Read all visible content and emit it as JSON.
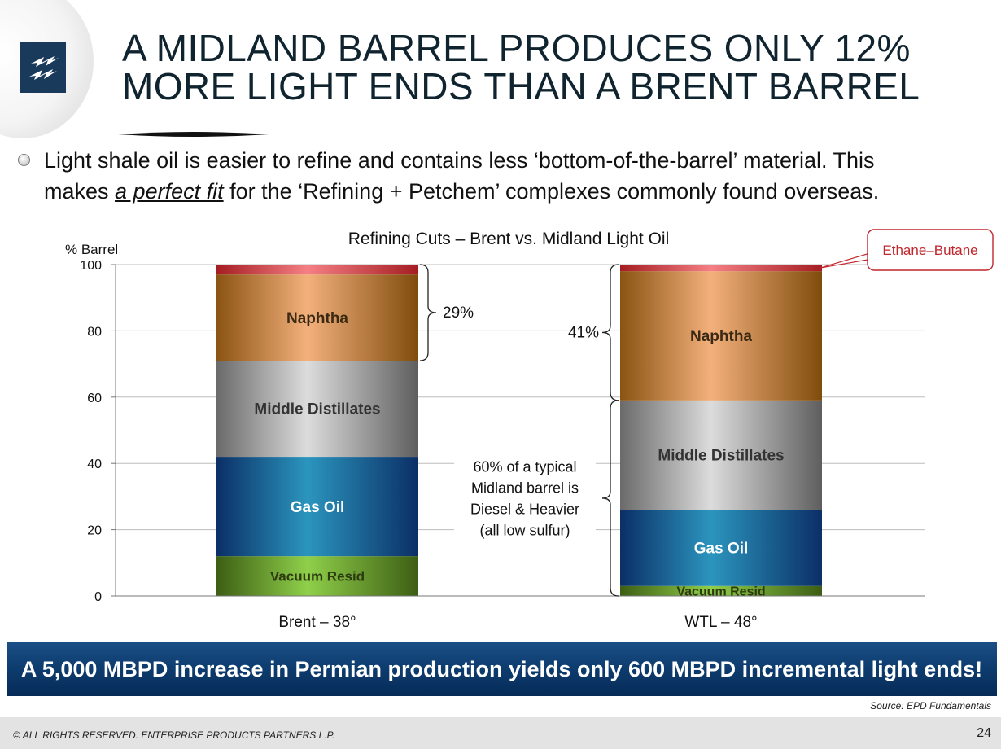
{
  "header": {
    "title_line1": "A MIDLAND BARREL PRODUCES ONLY 12%",
    "title_line2": "MORE LIGHT ENDS THAN A BRENT BARREL"
  },
  "logo": {
    "icon": "enterprise-lightning-icon",
    "color": "#1a3a5c"
  },
  "bullet": {
    "text_line1": "Light shale oil is easier to refine and contains less ‘bottom-of-the-barrel’ material.  This",
    "text_line2_pre": "makes ",
    "text_line2_em": "a perfect fit",
    "text_line2_post": " for the ‘Refining + Petchem’ complexes commonly found overseas."
  },
  "chart_data": {
    "type": "bar",
    "stacked": true,
    "title": "Refining Cuts – Brent vs. Midland Light Oil",
    "ylabel": "% Barrel",
    "xlabel": "",
    "ylim": [
      0,
      100
    ],
    "yticks": [
      0,
      20,
      40,
      60,
      80,
      100
    ],
    "grid": true,
    "categories": [
      "Brent – 38°",
      "WTL – 48°"
    ],
    "series": [
      {
        "name": "Vacuum Resid",
        "values": [
          12,
          3
        ],
        "color": "#4e7a1e"
      },
      {
        "name": "Gas Oil",
        "values": [
          30,
          23
        ],
        "color": "#1e6fa3"
      },
      {
        "name": "Middle Distillates",
        "values": [
          29,
          33
        ],
        "color": "#a8a8a8"
      },
      {
        "name": "Naphtha",
        "values": [
          26,
          39
        ],
        "color": "#d8904e"
      },
      {
        "name": "Ethane–Butane",
        "values": [
          3,
          2
        ],
        "color": "#c0272d"
      }
    ],
    "annotations": [
      {
        "text": "29%"
      },
      {
        "text": "41%"
      },
      {
        "text_lines": [
          "60% of a typical",
          "Midland barrel is",
          "Diesel & Heavier",
          "(all low sulfur)"
        ]
      },
      {
        "text": "Ethane–Butane",
        "color": "#c0272d"
      }
    ]
  },
  "banner": {
    "text": "A 5,000 MBPD increase in Permian production yields only 600 MBPD incremental light ends!"
  },
  "source": "Source:  EPD Fundamentals",
  "footer": {
    "copyright": "© ALL RIGHTS RESERVED. ENTERPRISE PRODUCTS PARTNERS L.P.",
    "page_number": "24"
  }
}
